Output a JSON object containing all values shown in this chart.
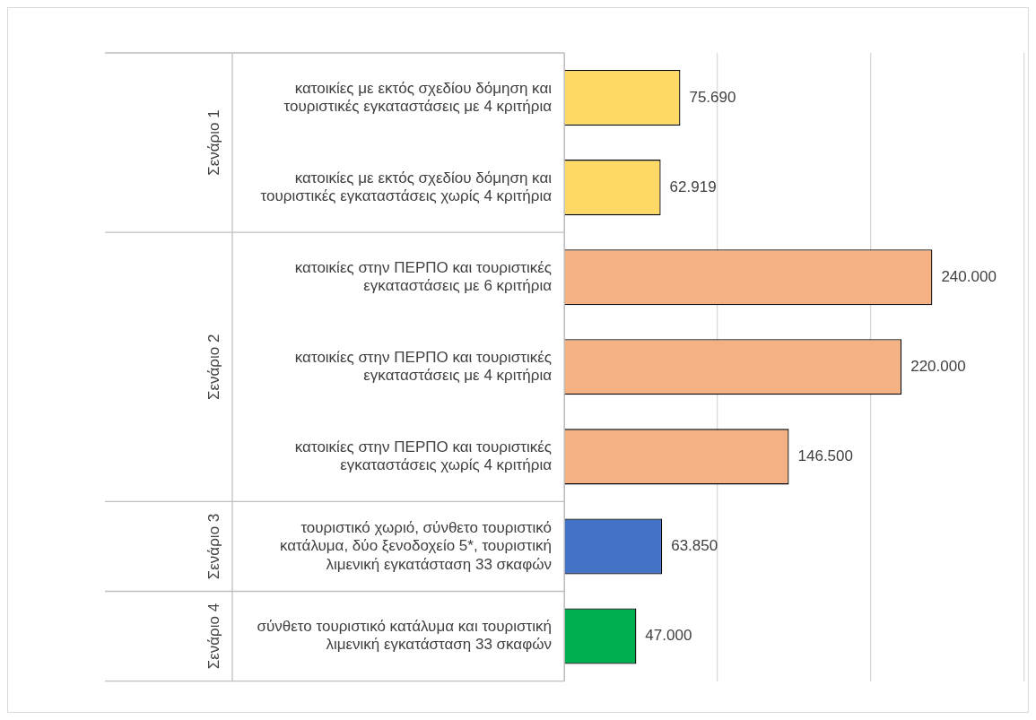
{
  "chart_data": {
    "type": "bar",
    "orientation": "horizontal",
    "categories": [
      "κατοικίες με εκτός σχεδίου δόμηση και τουριστικές εγκαταστάσεις με 4 κριτήρια",
      "κατοικίες με εκτός σχεδίου δόμηση και τουριστικές εγκαταστάσεις χωρίς 4 κριτήρια",
      "κατοικίες στην ΠΕΡΠΟ και τουριστικές εγκαταστάσεις με 6 κριτήρια",
      "κατοικίες στην ΠΕΡΠΟ και τουριστικές εγκαταστάσεις με 4 κριτήρια",
      "κατοικίες στην ΠΕΡΠΟ και τουριστικές εγκαταστάσεις χωρίς 4 κριτήρια",
      "τουριστικό χωριό, σύνθετο τουριστικό κατάλυμα, δύο ξενοδοχείο 5*, τουριστική λιμενική εγκατάσταση 33 σκαφών",
      "σύνθετο τουριστικό κατάλυμα και τουριστική λιμενική εγκατάσταση 33 σκαφών"
    ],
    "values": [
      75690,
      62919,
      240000,
      220000,
      146500,
      63850,
      47000
    ],
    "value_labels": [
      "75.690",
      "62.919",
      "240.000",
      "220.000",
      "146.500",
      "63.850",
      "47.000"
    ],
    "colors": [
      "#ffd966",
      "#ffd966",
      "#f4b183",
      "#f4b183",
      "#f4b183",
      "#4472c4",
      "#00b050"
    ],
    "annotations": [
      "Σενάριο 1",
      "Σενάριο 2",
      "Σενάριο 3",
      "Σενάριο 4"
    ],
    "xlim": [
      0,
      300000
    ],
    "xticks": [
      {
        "value": 0,
        "label": null
      },
      {
        "value": 100000,
        "label": null
      },
      {
        "value": 200000,
        "label": null
      },
      {
        "value": 300000,
        "label": null
      }
    ],
    "tick_labels": "y",
    "grid": "x",
    "legend": false
  }
}
